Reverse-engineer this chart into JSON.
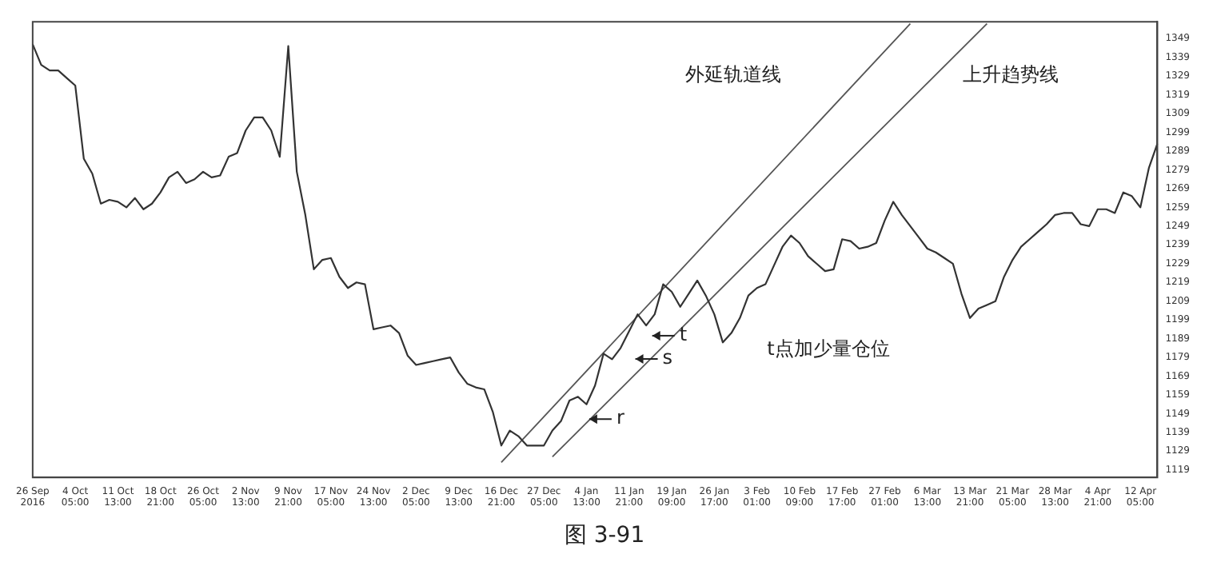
{
  "chart_data": {
    "type": "line",
    "grid": false,
    "legend": false,
    "marker": "none",
    "categories": [
      "26 Sep 2016",
      null,
      null,
      null,
      null,
      "4 Oct 05:00",
      null,
      null,
      null,
      null,
      "11 Oct 13:00",
      null,
      null,
      null,
      null,
      "18 Oct 21:00",
      null,
      null,
      null,
      null,
      "26 Oct 05:00",
      null,
      null,
      null,
      null,
      "2 Nov 13:00",
      null,
      null,
      null,
      null,
      "9 Nov 21:00",
      null,
      null,
      null,
      null,
      "17 Nov 05:00",
      null,
      null,
      null,
      null,
      "24 Nov 13:00",
      null,
      null,
      null,
      null,
      "2 Dec 05:00",
      null,
      null,
      null,
      null,
      "9 Dec 13:00",
      null,
      null,
      null,
      null,
      "16 Dec 21:00",
      null,
      null,
      null,
      null,
      "27 Dec 05:00",
      null,
      null,
      null,
      null,
      "4 Jan 13:00",
      null,
      null,
      null,
      null,
      "11 Jan 21:00",
      null,
      null,
      null,
      null,
      "19 Jan 09:00",
      null,
      null,
      null,
      null,
      "26 Jan 17:00",
      null,
      null,
      null,
      null,
      "3 Feb 01:00",
      null,
      null,
      null,
      null,
      "10 Feb 09:00",
      null,
      null,
      null,
      null,
      "17 Feb 17:00",
      null,
      null,
      null,
      null,
      "27 Feb 01:00",
      null,
      null,
      null,
      null,
      "6 Mar 13:00",
      null,
      null,
      null,
      null,
      "13 Mar 21:00",
      null,
      null,
      null,
      null,
      "21 Mar 05:00",
      null,
      null,
      null,
      null,
      "28 Mar 13:00",
      null,
      null,
      null,
      null,
      "4 Apr 21:00",
      null,
      null,
      null,
      null,
      "12 Apr 05:00",
      null,
      null
    ],
    "ylim": [
      1115,
      1358
    ],
    "yticks": [
      1119,
      1129,
      1139,
      1149,
      1159,
      1169,
      1179,
      1189,
      1199,
      1209,
      1219,
      1229,
      1239,
      1249,
      1259,
      1269,
      1279,
      1289,
      1299,
      1309,
      1319,
      1329,
      1339,
      1349
    ],
    "series": [
      {
        "color": "#333333",
        "values": [
          1346,
          1335,
          1332,
          1332,
          1328,
          1324,
          1285,
          1277,
          1261,
          1263,
          1262,
          1259,
          1264,
          1258,
          1261,
          1267,
          1275,
          1278,
          1272,
          1274,
          1278,
          1275,
          1276,
          1286,
          1288,
          1300,
          1307,
          1307,
          1300,
          1286,
          1345,
          1278,
          1255,
          1226,
          1231,
          1232,
          1222,
          1216,
          1219,
          1218,
          1194,
          1195,
          1196,
          1192,
          1180,
          1175,
          1176,
          1177,
          1178,
          1179,
          1171,
          1165,
          1163,
          1162,
          1150,
          1132,
          1140,
          1137,
          1132,
          1132,
          1132,
          1140,
          1145,
          1156,
          1158,
          1154,
          1164,
          1181,
          1178,
          1184,
          1193,
          1202,
          1196,
          1202,
          1218,
          1214,
          1206,
          1213,
          1220,
          1212,
          1202,
          1187,
          1192,
          1200,
          1212,
          1216,
          1218,
          1228,
          1238,
          1244,
          1240,
          1233,
          1229,
          1225,
          1226,
          1242,
          1241,
          1237,
          1238,
          1240,
          1252,
          1262,
          1255,
          1249,
          1243,
          1237,
          1235,
          1232,
          1229,
          1213,
          1200,
          1205,
          1207,
          1209,
          1222,
          1231,
          1238,
          1242,
          1246,
          1250,
          1255,
          1256,
          1256,
          1250,
          1249,
          1258,
          1258,
          1256,
          1267,
          1265,
          1259,
          1280,
          1293
        ]
      },
      {
        "name": "外延轨道线",
        "color": "#555555",
        "values": [
          null,
          null,
          null,
          null,
          null,
          null,
          null,
          null,
          null,
          null,
          null,
          null,
          null,
          null,
          null,
          null,
          null,
          null,
          null,
          null,
          null,
          null,
          null,
          null,
          null,
          null,
          null,
          null,
          null,
          null,
          null,
          null,
          null,
          null,
          null,
          null,
          null,
          null,
          null,
          null,
          null,
          null,
          null,
          null,
          null,
          null,
          null,
          null,
          null,
          null,
          null,
          null,
          null,
          null,
          null,
          1123,
          null,
          null,
          null,
          null,
          null,
          null,
          null,
          null,
          null,
          null,
          null,
          null,
          null,
          null,
          null,
          null,
          null,
          null,
          null,
          null,
          null,
          null,
          null,
          null,
          null,
          null,
          null,
          null,
          null,
          null,
          null,
          null,
          null,
          null,
          null,
          null,
          null,
          null,
          null,
          null,
          null,
          null,
          null,
          null,
          null,
          null,
          null,
          1357,
          null,
          null,
          null,
          null,
          null,
          null,
          null,
          null,
          null,
          null,
          null,
          null,
          null,
          null,
          null,
          null,
          null,
          null,
          null,
          null,
          null,
          null,
          null,
          null,
          null,
          null,
          null,
          null,
          null
        ]
      },
      {
        "name": "上升趋势线",
        "color": "#555555",
        "values": [
          null,
          null,
          null,
          null,
          null,
          null,
          null,
          null,
          null,
          null,
          null,
          null,
          null,
          null,
          null,
          null,
          null,
          null,
          null,
          null,
          null,
          null,
          null,
          null,
          null,
          null,
          null,
          null,
          null,
          null,
          null,
          null,
          null,
          null,
          null,
          null,
          null,
          null,
          null,
          null,
          null,
          null,
          null,
          null,
          null,
          null,
          null,
          null,
          null,
          null,
          null,
          null,
          null,
          null,
          null,
          null,
          null,
          null,
          null,
          null,
          null,
          1126,
          null,
          null,
          null,
          null,
          null,
          null,
          null,
          null,
          null,
          null,
          null,
          null,
          null,
          null,
          null,
          null,
          null,
          null,
          null,
          null,
          null,
          null,
          null,
          null,
          null,
          null,
          null,
          null,
          null,
          null,
          null,
          null,
          null,
          null,
          null,
          null,
          null,
          null,
          null,
          null,
          null,
          null,
          null,
          null,
          null,
          null,
          null,
          null,
          null,
          null,
          1357,
          null,
          null,
          null,
          null,
          null,
          null,
          null,
          null,
          null,
          null,
          null,
          null,
          null,
          null,
          null,
          null,
          null,
          null,
          null,
          null
        ]
      }
    ],
    "annotations": [
      "t",
      "s",
      "r",
      "t点加少量仓位",
      "图 3-91"
    ]
  }
}
